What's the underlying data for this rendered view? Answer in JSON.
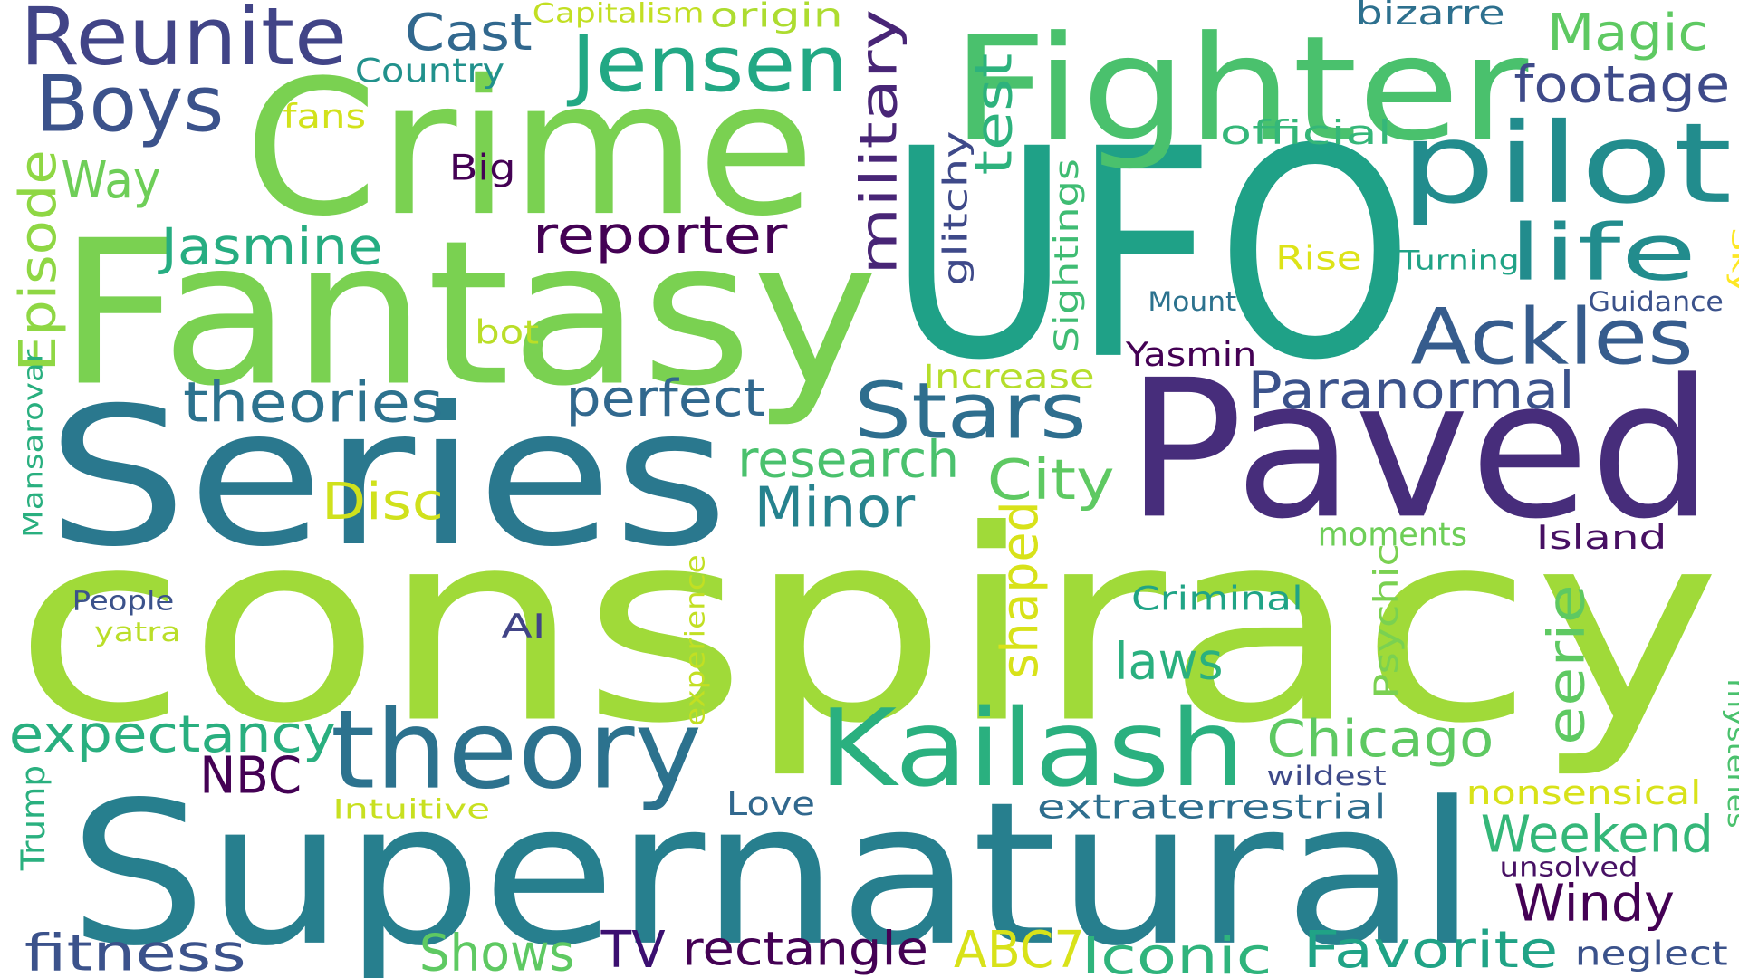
{
  "words": [
    {
      "text": "conspiracy",
      "color": "#a0da39"
    },
    {
      "text": "UFO",
      "color": "#1fa187"
    },
    {
      "text": "Supernatural",
      "color": "#277f8e"
    },
    {
      "text": "Fantasy",
      "color": "#7ad151"
    },
    {
      "text": "Series",
      "color": "#2a788e"
    },
    {
      "text": "Paved",
      "color": "#472d7b"
    },
    {
      "text": "Crime",
      "color": "#7ad151"
    },
    {
      "text": "Fighter",
      "color": "#4ac16d"
    },
    {
      "text": "theory",
      "color": "#2c728e"
    },
    {
      "text": "Kailash",
      "color": "#2ab07f"
    },
    {
      "text": "pilot",
      "color": "#228c8d"
    },
    {
      "text": "Reunite",
      "color": "#414487"
    },
    {
      "text": "Jensen",
      "color": "#22a884"
    },
    {
      "text": "Boys",
      "color": "#3b528b"
    },
    {
      "text": "Ackles",
      "color": "#365c8d"
    },
    {
      "text": "Stars",
      "color": "#2e6e8e"
    },
    {
      "text": "life",
      "color": "#228c8d"
    },
    {
      "text": "Magic",
      "color": "#5ec962"
    },
    {
      "text": "footage",
      "color": "#3e4a89"
    },
    {
      "text": "Cast",
      "color": "#31688e"
    },
    {
      "text": "Country",
      "color": "#21918c"
    },
    {
      "text": "Capitalism",
      "color": "#c2df23"
    },
    {
      "text": "origin",
      "color": "#addc30"
    },
    {
      "text": "bizarre",
      "color": "#2d708e"
    },
    {
      "text": "official",
      "color": "#35b779"
    },
    {
      "text": "fans",
      "color": "#d2e21b"
    },
    {
      "text": "Big",
      "color": "#440154"
    },
    {
      "text": "Way",
      "color": "#6ece58"
    },
    {
      "text": "military",
      "color": "#482576"
    },
    {
      "text": "test",
      "color": "#2db27d"
    },
    {
      "text": "glitchy",
      "color": "#3e4989"
    },
    {
      "text": "Sightings",
      "color": "#3fbc73"
    },
    {
      "text": "reporter",
      "color": "#440154"
    },
    {
      "text": "Jasmine",
      "color": "#26ad81"
    },
    {
      "text": "Episode",
      "color": "#8fd744"
    },
    {
      "text": "theories",
      "color": "#2c728e"
    },
    {
      "text": "perfect",
      "color": "#31688e"
    },
    {
      "text": "Paranormal",
      "color": "#3b528b"
    },
    {
      "text": "research",
      "color": "#4ac16d"
    },
    {
      "text": "Minor",
      "color": "#26828e"
    },
    {
      "text": "City",
      "color": "#5ec962"
    },
    {
      "text": "Disc",
      "color": "#d0e11c"
    },
    {
      "text": "Increase",
      "color": "#b5de2b"
    },
    {
      "text": "Yasmin",
      "color": "#440154"
    },
    {
      "text": "Rise",
      "color": "#dde318"
    },
    {
      "text": "Turning",
      "color": "#20a386"
    },
    {
      "text": "Sky",
      "color": "#fde725"
    },
    {
      "text": "Mount",
      "color": "#2c728e"
    },
    {
      "text": "Guidance",
      "color": "#3b528b"
    },
    {
      "text": "bot",
      "color": "#bade28"
    },
    {
      "text": "moments",
      "color": "#6ece58"
    },
    {
      "text": "Island",
      "color": "#471063"
    },
    {
      "text": "shaped",
      "color": "#d8e219"
    },
    {
      "text": "Criminal",
      "color": "#20a486"
    },
    {
      "text": "Psychic",
      "color": "#7ad151"
    },
    {
      "text": "eerie",
      "color": "#5ec962"
    },
    {
      "text": "laws",
      "color": "#2ab07f"
    },
    {
      "text": "Chicago",
      "color": "#5ec962"
    },
    {
      "text": "expectancy",
      "color": "#29af7f"
    },
    {
      "text": "People",
      "color": "#3b528b"
    },
    {
      "text": "yatra",
      "color": "#bade28"
    },
    {
      "text": "AI",
      "color": "#414487"
    },
    {
      "text": "experience",
      "color": "#c2df23"
    },
    {
      "text": "Mansarovar",
      "color": "#29af7f"
    },
    {
      "text": "NBC",
      "color": "#440154"
    },
    {
      "text": "Intuitive",
      "color": "#c8e020"
    },
    {
      "text": "Love",
      "color": "#31688e"
    },
    {
      "text": "extraterrestrial",
      "color": "#2e6e8e"
    },
    {
      "text": "wildest",
      "color": "#3e4a89"
    },
    {
      "text": "nonsensical",
      "color": "#d8e219"
    },
    {
      "text": "Weekend",
      "color": "#35b779"
    },
    {
      "text": "mysteries",
      "color": "#4ac16d"
    },
    {
      "text": "unsolved",
      "color": "#471164"
    },
    {
      "text": "Windy",
      "color": "#440154"
    },
    {
      "text": "Trump",
      "color": "#2ab07f"
    },
    {
      "text": "fitness",
      "color": "#3b528b"
    },
    {
      "text": "Shows",
      "color": "#5ec962"
    },
    {
      "text": "TV",
      "color": "#3b0f70"
    },
    {
      "text": "rectangle",
      "color": "#440154"
    },
    {
      "text": "ABC7",
      "color": "#d8e219"
    },
    {
      "text": "Iconic",
      "color": "#2fb47c"
    },
    {
      "text": "Favorite",
      "color": "#20a386"
    },
    {
      "text": "neglect",
      "color": "#3b528b"
    }
  ]
}
